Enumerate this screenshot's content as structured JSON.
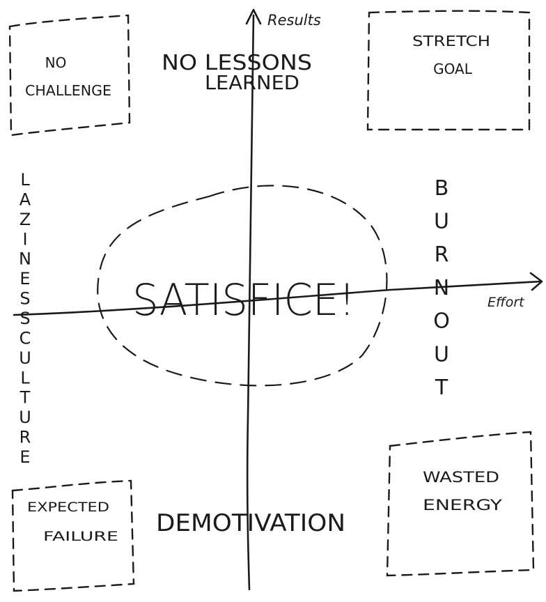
{
  "axes": {
    "y_label": "Results",
    "x_label": "Effort"
  },
  "center": {
    "label": "SATISFICE!"
  },
  "corners": {
    "top_left": [
      "NO",
      "CHALLENGE"
    ],
    "top_right": [
      "STRETCH",
      "GOAL"
    ],
    "bottom_left": [
      "EXPECTED",
      "FAILURE"
    ],
    "bottom_right": [
      "WASTED",
      "ENERGY"
    ]
  },
  "edges": {
    "top": [
      "NO LESSONS",
      "LEARNED"
    ],
    "bottom": "DEMOTIVATION",
    "left": [
      "L",
      "A",
      "Z",
      "I",
      "N",
      "E",
      "S",
      "S",
      "C",
      "U",
      "L",
      "T",
      "U",
      "R",
      "E"
    ],
    "right": [
      "B",
      "U",
      "R",
      "N",
      "O",
      "U",
      "T"
    ]
  },
  "colors": {
    "ink": "#1a1a1a",
    "paper": "#ffffff"
  }
}
